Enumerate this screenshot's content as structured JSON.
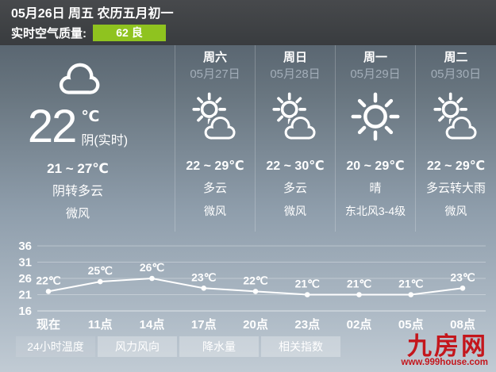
{
  "header": {
    "date_line": "05月26日 周五 农历五月初一",
    "aqi_label": "实时空气质量:",
    "aqi_value": "62 良",
    "aqi_color": "#8fc31f"
  },
  "today": {
    "temp": "22",
    "unit": "℃",
    "condition_now": "阴(实时)",
    "range": "21 ~ 27℃",
    "condition": "阴转多云",
    "wind": "微风",
    "icon": "cloudy-icon",
    "icon_ref": "#icon-cloud"
  },
  "forecast": {
    "columns": [
      {
        "day": "周六",
        "date": "05月27日",
        "icon": "partly-cloudy-icon",
        "icon_ref": "#icon-sun-cloud",
        "range": "22 ~ 29℃",
        "condition": "多云",
        "wind": "微风"
      },
      {
        "day": "周日",
        "date": "05月28日",
        "icon": "partly-cloudy-icon",
        "icon_ref": "#icon-sun-cloud",
        "range": "22 ~ 30℃",
        "condition": "多云",
        "wind": "微风"
      },
      {
        "day": "周一",
        "date": "05月29日",
        "icon": "sunny-icon",
        "icon_ref": "#icon-sun",
        "range": "20 ~ 29℃",
        "condition": "晴",
        "wind": "东北风3-4级"
      },
      {
        "day": "周二",
        "date": "05月30日",
        "icon": "partly-cloudy-icon",
        "icon_ref": "#icon-sun-cloud",
        "range": "22 ~ 29℃",
        "condition": "多云转大雨",
        "wind": "微风"
      }
    ]
  },
  "chart_data": {
    "type": "line",
    "title": "24小时温度",
    "x": [
      "现在",
      "11点",
      "14点",
      "17点",
      "20点",
      "23点",
      "02点",
      "05点",
      "08点"
    ],
    "values": [
      22,
      25,
      26,
      23,
      22,
      21,
      21,
      21,
      23
    ],
    "unit": "℃",
    "yticks": [
      36,
      31,
      26,
      21,
      16
    ],
    "ylim": [
      16,
      41
    ],
    "grid": true,
    "line_color": "#ffffff"
  },
  "tabs": [
    {
      "label": "24小时温度",
      "active": true
    },
    {
      "label": "风力风向",
      "active": false
    },
    {
      "label": "降水量",
      "active": false
    },
    {
      "label": "相关指数",
      "active": false
    }
  ],
  "branding": {
    "logo": "九房网",
    "url": "www.999house.com",
    "color": "#c4161c"
  }
}
